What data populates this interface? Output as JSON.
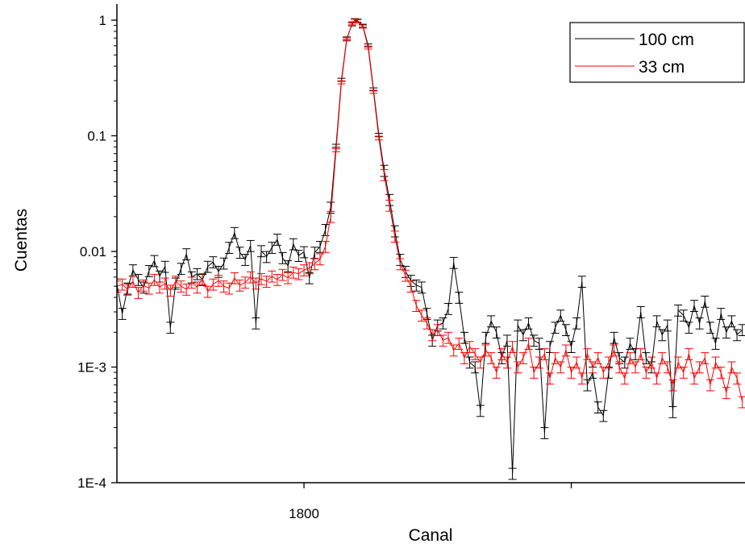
{
  "chart_data": {
    "type": "line",
    "xlabel": "Canal",
    "ylabel": "Cuentas",
    "yscale": "log",
    "xlim": [
      1730,
      1965
    ],
    "ylim": [
      0.0001,
      1.2
    ],
    "x_tick_labels": [
      {
        "value": 1800,
        "label": "1800"
      }
    ],
    "x_minor_ticks": [
      1900
    ],
    "y_ticks": [
      {
        "value": 1,
        "label": "1"
      },
      {
        "value": 0.1,
        "label": "0.1"
      },
      {
        "value": 0.01,
        "label": "0.01"
      },
      {
        "value": 0.001,
        "label": "1E-3"
      },
      {
        "value": 0.0001,
        "label": "1E-4"
      }
    ],
    "grid": false,
    "legend_position": "top-right",
    "peak": {
      "x": 1818,
      "sigma": 6.2
    },
    "series": [
      {
        "name": "100 cm",
        "color": "#000000",
        "error_bars": true,
        "points": [
          [
            1730,
            0.0052
          ],
          [
            1732,
            0.0029
          ],
          [
            1734,
            0.0048
          ],
          [
            1736,
            0.0069
          ],
          [
            1738,
            0.0057
          ],
          [
            1740,
            0.0049
          ],
          [
            1742,
            0.0068
          ],
          [
            1744,
            0.0083
          ],
          [
            1746,
            0.0061
          ],
          [
            1748,
            0.0074
          ],
          [
            1750,
            0.0022
          ],
          [
            1752,
            0.0053
          ],
          [
            1754,
            0.0071
          ],
          [
            1756,
            0.0095
          ],
          [
            1758,
            0.006
          ],
          [
            1760,
            0.0064
          ],
          [
            1762,
            0.0057
          ],
          [
            1764,
            0.0074
          ],
          [
            1766,
            0.0081
          ],
          [
            1768,
            0.0067
          ],
          [
            1770,
            0.0079
          ],
          [
            1772,
            0.0108
          ],
          [
            1774,
            0.0145
          ],
          [
            1776,
            0.0098
          ],
          [
            1778,
            0.0085
          ],
          [
            1780,
            0.0112
          ],
          [
            1782,
            0.0024
          ],
          [
            1784,
            0.0101
          ],
          [
            1786,
            0.009
          ],
          [
            1788,
            0.0108
          ],
          [
            1790,
            0.0127
          ],
          [
            1792,
            0.0088
          ],
          [
            1794,
            0.0075
          ],
          [
            1796,
            0.0116
          ],
          [
            1798,
            0.0092
          ],
          [
            1800,
            0.0099
          ],
          [
            1802,
            0.0059
          ],
          [
            1804,
            0.0098
          ],
          [
            1806,
            0.011
          ],
          [
            1808,
            0.0154
          ],
          [
            1810,
            0.024
          ],
          [
            1812,
            0.082
          ],
          [
            1814,
            0.305
          ],
          [
            1816,
            0.695
          ],
          [
            1818,
            0.92
          ],
          [
            1819,
            1.0
          ],
          [
            1820,
            0.99
          ],
          [
            1822,
            0.895
          ],
          [
            1824,
            0.605
          ],
          [
            1826,
            0.252
          ],
          [
            1828,
            0.102
          ],
          [
            1830,
            0.05
          ],
          [
            1832,
            0.028
          ],
          [
            1834,
            0.015
          ],
          [
            1836,
            0.0085
          ],
          [
            1838,
            0.0067
          ],
          [
            1840,
            0.0056
          ],
          [
            1842,
            0.0051
          ],
          [
            1844,
            0.0049
          ],
          [
            1846,
            0.0029
          ],
          [
            1848,
            0.0017
          ],
          [
            1850,
            0.0023
          ],
          [
            1852,
            0.0024
          ],
          [
            1854,
            0.0032
          ],
          [
            1856,
            0.008
          ],
          [
            1858,
            0.004
          ],
          [
            1860,
            0.0018
          ],
          [
            1862,
            0.0011
          ],
          [
            1864,
            0.001
          ],
          [
            1866,
            0.00042
          ],
          [
            1868,
            0.0018
          ],
          [
            1870,
            0.0025
          ],
          [
            1872,
            0.002
          ],
          [
            1874,
            0.0012
          ],
          [
            1876,
            0.0017
          ],
          [
            1878,
            0.00012
          ],
          [
            1880,
            0.0023
          ],
          [
            1882,
            0.0019
          ],
          [
            1884,
            0.0024
          ],
          [
            1886,
            0.0017
          ],
          [
            1888,
            0.0016
          ],
          [
            1890,
            0.00027
          ],
          [
            1892,
            0.0015
          ],
          [
            1894,
            0.0022
          ],
          [
            1896,
            0.0028
          ],
          [
            1898,
            0.0021
          ],
          [
            1900,
            0.0015
          ],
          [
            1902,
            0.0024
          ],
          [
            1904,
            0.0055
          ],
          [
            1906,
            0.0007
          ],
          [
            1908,
            0.0009
          ],
          [
            1910,
            0.00045
          ],
          [
            1912,
            0.00038
          ],
          [
            1914,
            0.0009
          ],
          [
            1916,
            0.0018
          ],
          [
            1918,
            0.0012
          ],
          [
            1920,
            0.0011
          ],
          [
            1922,
            0.0016
          ],
          [
            1924,
            0.0013
          ],
          [
            1926,
            0.003
          ],
          [
            1928,
            0.0012
          ],
          [
            1930,
            0.001
          ],
          [
            1932,
            0.0025
          ],
          [
            1934,
            0.0019
          ],
          [
            1936,
            0.0023
          ],
          [
            1938,
            0.00041
          ],
          [
            1940,
            0.0031
          ],
          [
            1942,
            0.0028
          ],
          [
            1944,
            0.0022
          ],
          [
            1946,
            0.0034
          ],
          [
            1948,
            0.0024
          ],
          [
            1950,
            0.0037
          ],
          [
            1952,
            0.0022
          ],
          [
            1954,
            0.0016
          ],
          [
            1956,
            0.0029
          ],
          [
            1958,
            0.002
          ],
          [
            1960,
            0.0025
          ],
          [
            1962,
            0.0019
          ],
          [
            1964,
            0.0021
          ]
        ]
      },
      {
        "name": "33 cm",
        "color": "#ff0000",
        "error_bars": true,
        "points": [
          [
            1730,
            0.005
          ],
          [
            1732,
            0.0052
          ],
          [
            1734,
            0.0047
          ],
          [
            1736,
            0.0055
          ],
          [
            1738,
            0.0044
          ],
          [
            1740,
            0.0051
          ],
          [
            1742,
            0.0048
          ],
          [
            1744,
            0.0057
          ],
          [
            1746,
            0.0049
          ],
          [
            1748,
            0.0053
          ],
          [
            1750,
            0.0046
          ],
          [
            1752,
            0.0055
          ],
          [
            1754,
            0.005
          ],
          [
            1756,
            0.0047
          ],
          [
            1758,
            0.0054
          ],
          [
            1760,
            0.0049
          ],
          [
            1762,
            0.0058
          ],
          [
            1764,
            0.0045
          ],
          [
            1766,
            0.0052
          ],
          [
            1768,
            0.0056
          ],
          [
            1770,
            0.005
          ],
          [
            1772,
            0.0048
          ],
          [
            1774,
            0.0059
          ],
          [
            1776,
            0.0051
          ],
          [
            1778,
            0.0054
          ],
          [
            1780,
            0.006
          ],
          [
            1782,
            0.0053
          ],
          [
            1784,
            0.0058
          ],
          [
            1786,
            0.0055
          ],
          [
            1788,
            0.0061
          ],
          [
            1790,
            0.0057
          ],
          [
            1792,
            0.0063
          ],
          [
            1794,
            0.0059
          ],
          [
            1796,
            0.0066
          ],
          [
            1798,
            0.0064
          ],
          [
            1800,
            0.0069
          ],
          [
            1802,
            0.0072
          ],
          [
            1804,
            0.0078
          ],
          [
            1806,
            0.0086
          ],
          [
            1808,
            0.011
          ],
          [
            1810,
            0.02
          ],
          [
            1812,
            0.075
          ],
          [
            1814,
            0.29
          ],
          [
            1816,
            0.68
          ],
          [
            1818,
            0.94
          ],
          [
            1819,
            0.99
          ],
          [
            1820,
            0.98
          ],
          [
            1822,
            0.88
          ],
          [
            1824,
            0.58
          ],
          [
            1826,
            0.24
          ],
          [
            1828,
            0.095
          ],
          [
            1830,
            0.046
          ],
          [
            1832,
            0.025
          ],
          [
            1834,
            0.0135
          ],
          [
            1836,
            0.0078
          ],
          [
            1838,
            0.0062
          ],
          [
            1840,
            0.005
          ],
          [
            1842,
            0.0034
          ],
          [
            1844,
            0.0028
          ],
          [
            1846,
            0.0024
          ],
          [
            1848,
            0.0019
          ],
          [
            1850,
            0.0021
          ],
          [
            1852,
            0.0017
          ],
          [
            1854,
            0.0018
          ],
          [
            1856,
            0.0014
          ],
          [
            1858,
            0.0016
          ],
          [
            1860,
            0.0012
          ],
          [
            1862,
            0.0015
          ],
          [
            1864,
            0.0013
          ],
          [
            1866,
            0.0011
          ],
          [
            1868,
            0.0014
          ],
          [
            1870,
            0.0012
          ],
          [
            1872,
            0.0009
          ],
          [
            1874,
            0.0013
          ],
          [
            1876,
            0.0011
          ],
          [
            1878,
            0.0015
          ],
          [
            1880,
            0.001
          ],
          [
            1882,
            0.0012
          ],
          [
            1884,
            0.0016
          ],
          [
            1886,
            0.0009
          ],
          [
            1888,
            0.0011
          ],
          [
            1890,
            0.0013
          ],
          [
            1892,
            0.0008
          ],
          [
            1894,
            0.0012
          ],
          [
            1896,
            0.001
          ],
          [
            1898,
            0.0014
          ],
          [
            1900,
            0.0009
          ],
          [
            1902,
            0.0011
          ],
          [
            1904,
            0.0008
          ],
          [
            1906,
            0.0013
          ],
          [
            1908,
            0.001
          ],
          [
            1910,
            0.0012
          ],
          [
            1912,
            0.0009
          ],
          [
            1914,
            0.0011
          ],
          [
            1916,
            0.0014
          ],
          [
            1918,
            0.001
          ],
          [
            1920,
            0.0008
          ],
          [
            1922,
            0.0012
          ],
          [
            1924,
            0.001
          ],
          [
            1926,
            0.0013
          ],
          [
            1928,
            0.0009
          ],
          [
            1930,
            0.0011
          ],
          [
            1932,
            0.0008
          ],
          [
            1934,
            0.0012
          ],
          [
            1936,
            0.001
          ],
          [
            1938,
            0.0007
          ],
          [
            1940,
            0.0011
          ],
          [
            1942,
            0.0009
          ],
          [
            1944,
            0.0013
          ],
          [
            1946,
            0.0008
          ],
          [
            1948,
            0.001
          ],
          [
            1950,
            0.0012
          ],
          [
            1952,
            0.0007
          ],
          [
            1954,
            0.0011
          ],
          [
            1956,
            0.0009
          ],
          [
            1958,
            0.0006
          ],
          [
            1960,
            0.001
          ],
          [
            1962,
            0.0008
          ],
          [
            1964,
            0.0005
          ]
        ]
      }
    ]
  }
}
